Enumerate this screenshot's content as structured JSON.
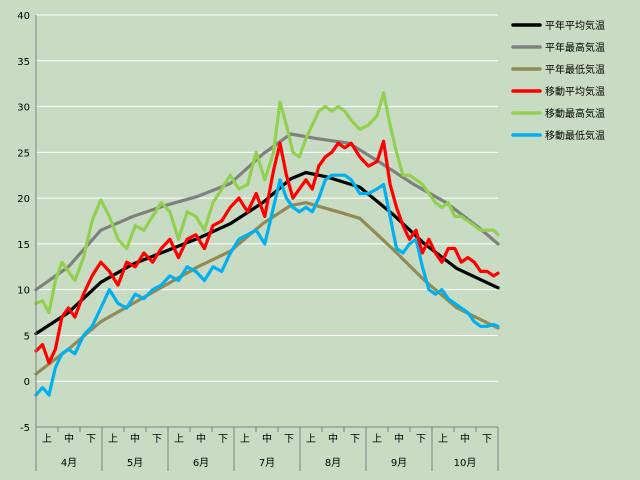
{
  "chart_data": {
    "type": "line",
    "title": "",
    "xlabel": "",
    "ylabel": "",
    "ylim": [
      -5,
      40
    ],
    "yticks": [
      -5,
      0,
      5,
      10,
      15,
      20,
      25,
      30,
      35,
      40
    ],
    "grid": true,
    "legend_position": "right",
    "x_periods": [
      "上",
      "中",
      "下",
      "上",
      "中",
      "下",
      "上",
      "中",
      "下",
      "上",
      "中",
      "下",
      "上",
      "中",
      "下",
      "上",
      "中",
      "下",
      "上",
      "中",
      "下"
    ],
    "months": [
      "4月",
      "5月",
      "6月",
      "7月",
      "8月",
      "9月",
      "10月"
    ],
    "x_domain": [
      0,
      214
    ],
    "series": [
      {
        "name": "平年平均気温",
        "color": "#000000",
        "points": [
          [
            0,
            5.2
          ],
          [
            15,
            7.5
          ],
          [
            30,
            10.8
          ],
          [
            45,
            12.8
          ],
          [
            60,
            14.2
          ],
          [
            75,
            15.6
          ],
          [
            90,
            17.2
          ],
          [
            105,
            19.5
          ],
          [
            118,
            22.1
          ],
          [
            125,
            22.8
          ],
          [
            135,
            22.3
          ],
          [
            150,
            21.2
          ],
          [
            165,
            18.3
          ],
          [
            180,
            15.0
          ],
          [
            195,
            12.3
          ],
          [
            214,
            10.2
          ]
        ]
      },
      {
        "name": "平年最高気温",
        "color": "#808080",
        "points": [
          [
            0,
            10.0
          ],
          [
            15,
            12.5
          ],
          [
            30,
            16.5
          ],
          [
            45,
            18.0
          ],
          [
            60,
            19.2
          ],
          [
            75,
            20.2
          ],
          [
            90,
            21.6
          ],
          [
            105,
            24.8
          ],
          [
            118,
            27.0
          ],
          [
            130,
            26.5
          ],
          [
            145,
            26.0
          ],
          [
            160,
            23.8
          ],
          [
            175,
            21.5
          ],
          [
            190,
            19.5
          ],
          [
            205,
            16.8
          ],
          [
            214,
            15.0
          ]
        ]
      },
      {
        "name": "平年最低気温",
        "color": "#948a54",
        "points": [
          [
            0,
            0.8
          ],
          [
            15,
            3.5
          ],
          [
            30,
            6.5
          ],
          [
            45,
            8.5
          ],
          [
            60,
            10.5
          ],
          [
            75,
            12.5
          ],
          [
            90,
            14.2
          ],
          [
            105,
            17.2
          ],
          [
            118,
            19.2
          ],
          [
            125,
            19.5
          ],
          [
            140,
            18.5
          ],
          [
            150,
            17.8
          ],
          [
            165,
            14.5
          ],
          [
            180,
            11.0
          ],
          [
            195,
            8.0
          ],
          [
            214,
            5.8
          ]
        ]
      },
      {
        "name": "移動平均気温",
        "color": "#ff0000",
        "points": [
          [
            0,
            3.3
          ],
          [
            3,
            4.0
          ],
          [
            6,
            2.0
          ],
          [
            9,
            3.5
          ],
          [
            12,
            7.0
          ],
          [
            15,
            8.0
          ],
          [
            18,
            7.0
          ],
          [
            22,
            9.5
          ],
          [
            26,
            11.5
          ],
          [
            30,
            13.0
          ],
          [
            34,
            12.0
          ],
          [
            38,
            10.5
          ],
          [
            42,
            13.0
          ],
          [
            46,
            12.5
          ],
          [
            50,
            14.0
          ],
          [
            54,
            13.0
          ],
          [
            58,
            14.5
          ],
          [
            62,
            15.5
          ],
          [
            66,
            13.5
          ],
          [
            70,
            15.5
          ],
          [
            74,
            16.0
          ],
          [
            78,
            14.5
          ],
          [
            82,
            17.0
          ],
          [
            86,
            17.5
          ],
          [
            90,
            19.0
          ],
          [
            94,
            20.0
          ],
          [
            98,
            18.5
          ],
          [
            102,
            20.5
          ],
          [
            106,
            18.0
          ],
          [
            110,
            23.0
          ],
          [
            113,
            26.0
          ],
          [
            116,
            22.5
          ],
          [
            119,
            20.0
          ],
          [
            122,
            21.0
          ],
          [
            125,
            22.0
          ],
          [
            128,
            21.0
          ],
          [
            131,
            23.5
          ],
          [
            134,
            24.5
          ],
          [
            137,
            25.0
          ],
          [
            140,
            26.0
          ],
          [
            143,
            25.5
          ],
          [
            146,
            26.0
          ],
          [
            150,
            24.5
          ],
          [
            154,
            23.5
          ],
          [
            158,
            24.0
          ],
          [
            161,
            26.2
          ],
          [
            164,
            21.5
          ],
          [
            167,
            19.0
          ],
          [
            170,
            17.0
          ],
          [
            173,
            15.5
          ],
          [
            176,
            16.5
          ],
          [
            179,
            14.0
          ],
          [
            182,
            15.5
          ],
          [
            185,
            14.0
          ],
          [
            188,
            13.0
          ],
          [
            191,
            14.5
          ],
          [
            194,
            14.5
          ],
          [
            197,
            13.0
          ],
          [
            200,
            13.5
          ],
          [
            203,
            13.0
          ],
          [
            206,
            12.0
          ],
          [
            209,
            12.0
          ],
          [
            212,
            11.5
          ],
          [
            214,
            11.8
          ]
        ]
      },
      {
        "name": "移動最高気温",
        "color": "#92d050",
        "points": [
          [
            0,
            8.5
          ],
          [
            3,
            8.8
          ],
          [
            6,
            7.5
          ],
          [
            9,
            11.0
          ],
          [
            12,
            13.0
          ],
          [
            15,
            12.0
          ],
          [
            18,
            11.0
          ],
          [
            22,
            13.5
          ],
          [
            26,
            17.5
          ],
          [
            30,
            19.8
          ],
          [
            34,
            18.0
          ],
          [
            38,
            15.5
          ],
          [
            42,
            14.5
          ],
          [
            46,
            17.0
          ],
          [
            50,
            16.5
          ],
          [
            54,
            18.0
          ],
          [
            58,
            19.5
          ],
          [
            62,
            18.5
          ],
          [
            66,
            15.5
          ],
          [
            70,
            18.5
          ],
          [
            74,
            18.0
          ],
          [
            78,
            16.5
          ],
          [
            82,
            19.5
          ],
          [
            86,
            21.0
          ],
          [
            90,
            22.5
          ],
          [
            94,
            21.0
          ],
          [
            98,
            21.5
          ],
          [
            102,
            25.0
          ],
          [
            106,
            22.0
          ],
          [
            110,
            25.0
          ],
          [
            113,
            30.5
          ],
          [
            116,
            28.0
          ],
          [
            119,
            25.0
          ],
          [
            122,
            24.5
          ],
          [
            125,
            26.5
          ],
          [
            128,
            28.0
          ],
          [
            131,
            29.5
          ],
          [
            134,
            30.0
          ],
          [
            137,
            29.5
          ],
          [
            140,
            30.0
          ],
          [
            143,
            29.5
          ],
          [
            146,
            28.5
          ],
          [
            150,
            27.5
          ],
          [
            154,
            28.0
          ],
          [
            158,
            29.0
          ],
          [
            161,
            31.5
          ],
          [
            164,
            28.0
          ],
          [
            167,
            25.0
          ],
          [
            170,
            22.5
          ],
          [
            173,
            22.5
          ],
          [
            176,
            22.0
          ],
          [
            179,
            21.5
          ],
          [
            182,
            20.5
          ],
          [
            185,
            19.5
          ],
          [
            188,
            19.0
          ],
          [
            191,
            19.5
          ],
          [
            194,
            18.0
          ],
          [
            197,
            18.0
          ],
          [
            200,
            17.5
          ],
          [
            203,
            17.0
          ],
          [
            206,
            16.5
          ],
          [
            209,
            16.5
          ],
          [
            212,
            16.5
          ],
          [
            214,
            16.0
          ]
        ]
      },
      {
        "name": "移動最低気温",
        "color": "#00b0f0",
        "points": [
          [
            0,
            -1.5
          ],
          [
            3,
            -0.7
          ],
          [
            6,
            -1.5
          ],
          [
            9,
            1.5
          ],
          [
            12,
            3.0
          ],
          [
            15,
            3.5
          ],
          [
            18,
            3.0
          ],
          [
            22,
            5.0
          ],
          [
            26,
            6.0
          ],
          [
            30,
            8.0
          ],
          [
            34,
            10.0
          ],
          [
            38,
            8.5
          ],
          [
            42,
            8.0
          ],
          [
            46,
            9.5
          ],
          [
            50,
            9.0
          ],
          [
            54,
            10.0
          ],
          [
            58,
            10.5
          ],
          [
            62,
            11.5
          ],
          [
            66,
            11.0
          ],
          [
            70,
            12.5
          ],
          [
            74,
            12.0
          ],
          [
            78,
            11.0
          ],
          [
            82,
            12.5
          ],
          [
            86,
            12.0
          ],
          [
            90,
            14.0
          ],
          [
            94,
            15.5
          ],
          [
            98,
            16.0
          ],
          [
            102,
            16.5
          ],
          [
            106,
            15.0
          ],
          [
            110,
            19.0
          ],
          [
            113,
            22.0
          ],
          [
            116,
            20.0
          ],
          [
            119,
            19.0
          ],
          [
            122,
            18.5
          ],
          [
            125,
            19.0
          ],
          [
            128,
            18.5
          ],
          [
            131,
            20.0
          ],
          [
            134,
            22.0
          ],
          [
            137,
            22.5
          ],
          [
            140,
            22.5
          ],
          [
            143,
            22.5
          ],
          [
            146,
            22.0
          ],
          [
            150,
            20.5
          ],
          [
            154,
            20.5
          ],
          [
            158,
            21.0
          ],
          [
            161,
            21.5
          ],
          [
            164,
            18.0
          ],
          [
            167,
            14.5
          ],
          [
            170,
            14.0
          ],
          [
            173,
            15.0
          ],
          [
            176,
            15.5
          ],
          [
            179,
            12.5
          ],
          [
            182,
            10.0
          ],
          [
            185,
            9.5
          ],
          [
            188,
            10.0
          ],
          [
            191,
            9.0
          ],
          [
            194,
            8.5
          ],
          [
            197,
            8.0
          ],
          [
            200,
            7.5
          ],
          [
            203,
            6.5
          ],
          [
            206,
            6.0
          ],
          [
            209,
            6.0
          ],
          [
            212,
            6.2
          ],
          [
            214,
            6.0
          ]
        ]
      }
    ]
  }
}
